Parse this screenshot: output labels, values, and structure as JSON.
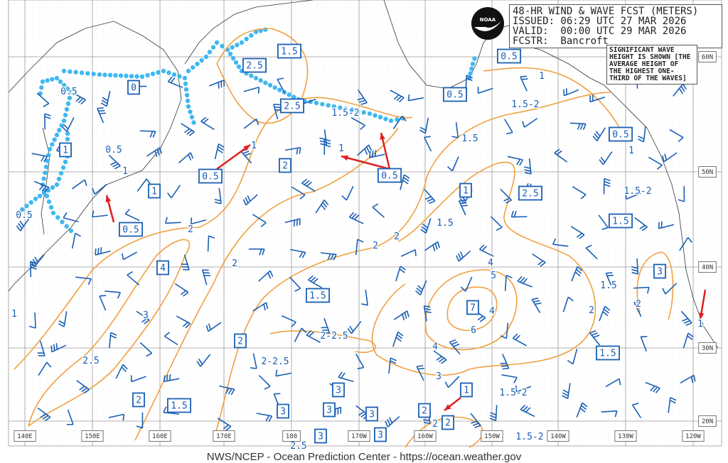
{
  "header": {
    "title": "48-HR WIND & WAVE FCST (METERS)",
    "issued": "ISSUED: 06:29 UTC 27 MAR 2026",
    "valid": "VALID:  00:00 UTC 29 MAR 2026",
    "forecaster": "FCSTR:  Bancroft"
  },
  "note": "SIGNIFICANT WAVE HEIGHT IS SHOWN [THE AVERAGE HEIGHT OF THE HIGHEST ONE-THIRD OF THE WAVES]",
  "logo": "NOAA",
  "footer": "NWS/NCEP - Ocean Prediction Center - https://ocean.weather.gov",
  "longitude_labels": [
    "140E",
    "150E",
    "160E",
    "170E",
    "180",
    "170W",
    "160W",
    "150W",
    "140W",
    "130W",
    "120W"
  ],
  "latitude_labels": [
    "60N",
    "50N",
    "40N",
    "30N",
    "20N"
  ],
  "colors": {
    "wave_contour": "#f0a040",
    "wind_barb": "#1a5fb4",
    "ice_edge": "#40b8f0",
    "arrow": "#e02020",
    "grid": "#999999"
  },
  "boxed_wave_heights": [
    "0",
    "0.5",
    "0.5",
    "1",
    "1",
    "1.5",
    "2.5",
    "2.5",
    "2",
    "0.5",
    "0.5",
    "0.5",
    "0.5",
    "1",
    "2.5",
    "1.5",
    "3",
    "4",
    "1.5",
    "2",
    "7",
    "1.5",
    "2",
    "1.5",
    "3",
    "3",
    "3",
    "3",
    "3",
    "3",
    "2",
    "1",
    "2"
  ],
  "wave_height_labels": [
    "0.5",
    "0.5",
    "0.5",
    "1",
    "1.5-2",
    "1.5-2",
    "1.5",
    "1.5-2",
    "1.5",
    "1.5",
    "2",
    "2.5",
    "2-2.5",
    "2-2.5",
    "1.5-2",
    "1.5-2",
    "2",
    "2",
    "2",
    "2",
    "3",
    "4",
    "5",
    "4",
    "6",
    "4",
    "3",
    "2",
    "1",
    "1",
    "1",
    "1",
    "2.5",
    "1",
    "1",
    "2"
  ]
}
